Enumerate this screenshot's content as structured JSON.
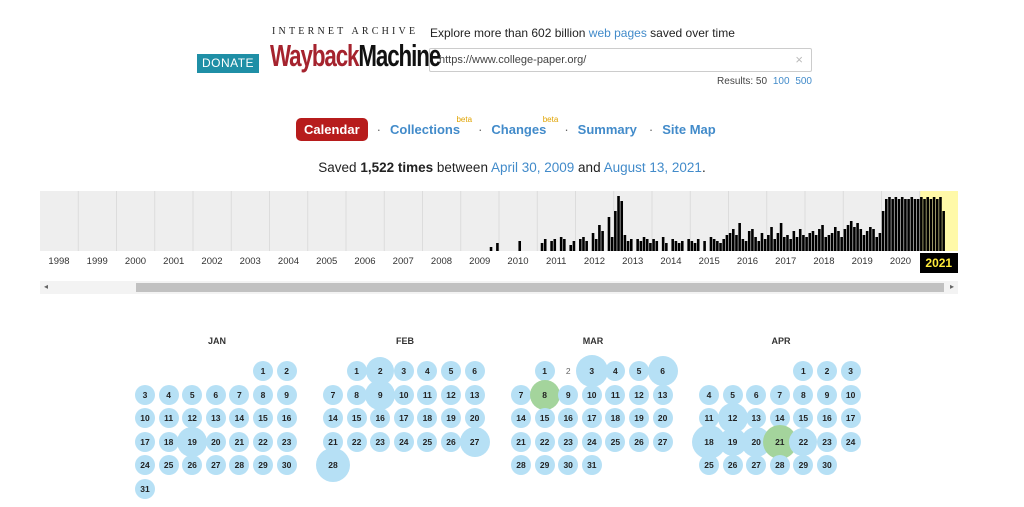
{
  "header": {
    "donate": "DONATE",
    "ia_text": "INTERNET ARCHIVE",
    "logo_wayback": "Wayback",
    "logo_machine": "Machine",
    "explore_prefix": "Explore more than 602 billion",
    "explore_link": "web pages",
    "explore_suffix": "saved over time",
    "search_value": "https://www.college-paper.org/",
    "clear_icon": "×",
    "results_label": "Results: 50",
    "results_100": "100",
    "results_500": "500"
  },
  "nav": {
    "calendar": "Calendar",
    "collections": "Collections",
    "changes": "Changes",
    "summary": "Summary",
    "sitemap": "Site Map",
    "beta": "beta",
    "sep": "·"
  },
  "saved": {
    "prefix": "Saved",
    "count": "1,522 times",
    "between": "between",
    "start": "April 30, 2009",
    "and": "and",
    "end": "August 13, 2021",
    "period": "."
  },
  "years": [
    "1998",
    "1999",
    "2000",
    "2001",
    "2002",
    "2003",
    "2004",
    "2005",
    "2006",
    "2007",
    "2008",
    "2009",
    "2010",
    "2011",
    "2012",
    "2013",
    "2014",
    "2015",
    "2016",
    "2017",
    "2018",
    "2019",
    "2020",
    "2021"
  ],
  "selected_year": "2021",
  "scroll": {
    "left": "◂",
    "right": "▸"
  },
  "colors": {
    "accent": "#b71c1c",
    "link": "#428bca",
    "bubble": "#b6e0f5",
    "bubble_green": "#a4d49c",
    "selected_year_bg": "#fff9a8"
  },
  "calendar": {
    "jan": {
      "title": "JAN"
    },
    "feb": {
      "title": "FEB"
    },
    "mar": {
      "title": "MAR"
    },
    "apr": {
      "title": "APR"
    }
  }
}
